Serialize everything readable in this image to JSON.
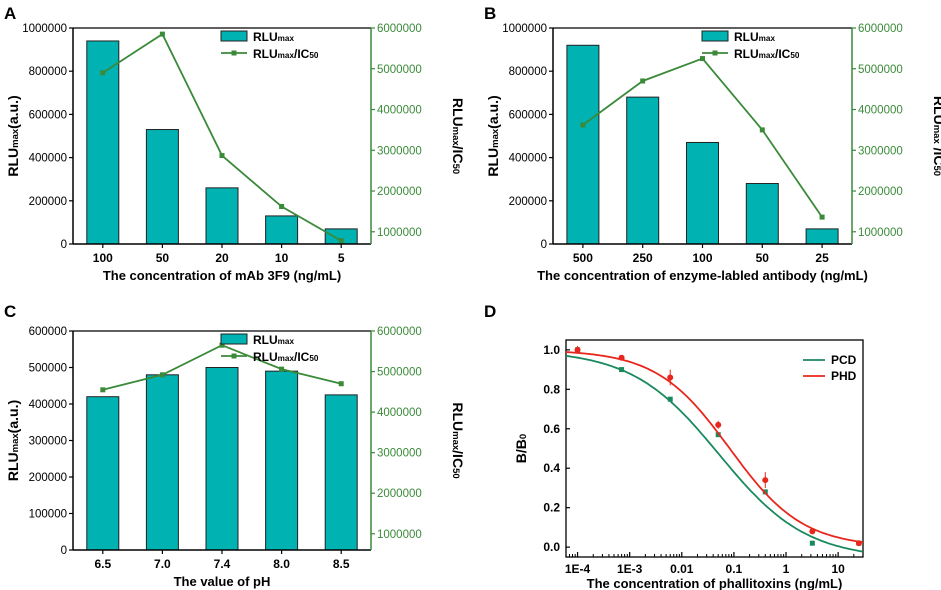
{
  "colors": {
    "bar": "#00b2b2",
    "green": "#3a8a3a",
    "pcd": "#1a8a5e",
    "phd": "#e8261c",
    "axis": "#000000"
  },
  "chart_data": [
    {
      "panel": "A",
      "type": "bar+line",
      "categories": [
        "100",
        "50",
        "20",
        "10",
        "5"
      ],
      "xlabel": "The concentration of mAb 3F9 (ng/mL)",
      "ylabel_left": "RLUmax(a.u.)",
      "ylabel_right": "RLUmax/IC50",
      "ylim_left": [
        0,
        1000000
      ],
      "ylim_right": [
        700000,
        6000000
      ],
      "yticks_left": [
        "0",
        "200000",
        "400000",
        "600000",
        "800000",
        "1000000"
      ],
      "yticks_right": [
        "1000000",
        "2000000",
        "3000000",
        "4000000",
        "5000000",
        "6000000"
      ],
      "series": [
        {
          "name": "RLUmax",
          "kind": "bar",
          "axis": "left",
          "values": [
            940000,
            530000,
            260000,
            130000,
            70000
          ]
        },
        {
          "name": "RLUmax/IC50",
          "kind": "line",
          "axis": "right",
          "values": [
            4900000,
            5850000,
            2870000,
            1620000,
            780000
          ]
        }
      ],
      "legend": [
        "RLUmax",
        "RLUmax/IC50"
      ]
    },
    {
      "panel": "B",
      "type": "bar+line",
      "categories": [
        "500",
        "250",
        "100",
        "50",
        "25"
      ],
      "xlabel": "The concentration of enzyme-labled antibody (ng/mL)",
      "ylabel_left": "RLUmax(a.u.)",
      "ylabel_right": "RLUmax /IC50",
      "ylim_left": [
        0,
        1000000
      ],
      "ylim_right": [
        700000,
        6000000
      ],
      "yticks_left": [
        "0",
        "200000",
        "400000",
        "600000",
        "800000",
        "1000000"
      ],
      "yticks_right": [
        "1000000",
        "2000000",
        "3000000",
        "4000000",
        "5000000",
        "6000000"
      ],
      "series": [
        {
          "name": "RLUmax",
          "kind": "bar",
          "axis": "left",
          "values": [
            920000,
            680000,
            470000,
            280000,
            70000
          ]
        },
        {
          "name": "RLUmax/IC50",
          "kind": "line",
          "axis": "right",
          "values": [
            3620000,
            4700000,
            5250000,
            3500000,
            1360000
          ]
        }
      ],
      "legend": [
        "RLUmax",
        "RLUmax/IC50"
      ]
    },
    {
      "panel": "C",
      "type": "bar+line",
      "categories": [
        "6.5",
        "7.0",
        "7.4",
        "8.0",
        "8.5"
      ],
      "xlabel": "The value of pH",
      "ylabel_left": "RLUmax(a.u.)",
      "ylabel_right": "RLUmax/IC50",
      "ylim_left": [
        0,
        600000
      ],
      "ylim_right": [
        600000,
        6000000
      ],
      "yticks_left": [
        "0",
        "100000",
        "200000",
        "300000",
        "400000",
        "500000",
        "600000"
      ],
      "yticks_right": [
        "1000000",
        "2000000",
        "3000000",
        "4000000",
        "5000000",
        "6000000"
      ],
      "series": [
        {
          "name": "RLUmax",
          "kind": "bar",
          "axis": "left",
          "values": [
            420000,
            480000,
            500000,
            490000,
            425000
          ]
        },
        {
          "name": "RLUmax/IC50",
          "kind": "line",
          "axis": "right",
          "values": [
            4550000,
            4920000,
            5650000,
            5060000,
            4700000
          ]
        }
      ],
      "legend": [
        "RLUmax",
        "RLUmax/IC50"
      ]
    },
    {
      "panel": "D",
      "type": "scatter+line",
      "xscale": "log",
      "xlabel": "The concentration of phallitoxins (ng/mL)",
      "ylabel": "B/B0",
      "xlim": [
        6e-05,
        30
      ],
      "ylim": [
        -0.05,
        1.05
      ],
      "xticks": [
        "1E-4",
        "1E-3",
        "0.01",
        "0.1",
        "1",
        "10"
      ],
      "yticks": [
        "0.0",
        "0.2",
        "0.4",
        "0.6",
        "0.8",
        "1.0"
      ],
      "series": [
        {
          "name": "PCD",
          "x": [
            0.0001,
            0.0007,
            0.006,
            0.05,
            0.4,
            3.2,
            25
          ],
          "y": [
            1.0,
            0.9,
            0.75,
            0.57,
            0.28,
            0.02,
            0.02
          ],
          "fit": {
            "top": 1.0,
            "bottom": -0.06,
            "ic50": 0.052,
            "hill": 0.52
          }
        },
        {
          "name": "PHD",
          "x": [
            0.0001,
            0.0007,
            0.006,
            0.05,
            0.4,
            3.2,
            25
          ],
          "y": [
            1.0,
            0.96,
            0.86,
            0.62,
            0.34,
            0.08,
            0.02
          ],
          "yerr": [
            0.02,
            0.01,
            0.04,
            0.02,
            0.04,
            0.01,
            0.01
          ],
          "fit": {
            "top": 1.0,
            "bottom": 0.0,
            "ic50": 0.083,
            "hill": 0.62
          }
        }
      ],
      "legend": [
        "PCD",
        "PHD"
      ]
    }
  ]
}
